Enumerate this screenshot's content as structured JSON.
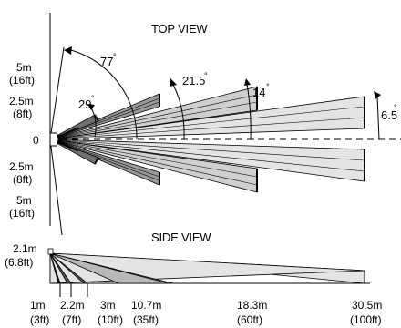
{
  "top_view": {
    "title": "TOP VIEW",
    "y_labels": [
      {
        "line1": "5m",
        "line2": "(16ft)"
      },
      {
        "line1": "2.5m",
        "line2": "(8ft)"
      },
      {
        "line1": "0",
        "line2": ""
      },
      {
        "line1": "2.5m",
        "line2": "(8ft)"
      },
      {
        "line1": "5m",
        "line2": "(16ft)"
      }
    ],
    "angles": [
      {
        "value": "77",
        "unit": "°"
      },
      {
        "value": "29",
        "unit": "°"
      },
      {
        "value": "21.5",
        "unit": "°"
      },
      {
        "value": "14",
        "unit": "°"
      },
      {
        "value": "6.5",
        "unit": "°"
      }
    ]
  },
  "side_view": {
    "title": "SIDE VIEW",
    "height_label": {
      "line1": "2.1m",
      "line2": "(6.8ft)"
    },
    "distances": [
      {
        "m": "1m",
        "ft": "(3ft)"
      },
      {
        "m": "2.2m",
        "ft": "(7ft)"
      },
      {
        "m": "3m",
        "ft": "(10ft)"
      },
      {
        "m": "10.7m",
        "ft": "(35ft)"
      },
      {
        "m": "18.3m",
        "ft": "(60ft)"
      },
      {
        "m": "30.5m",
        "ft": "(100ft)"
      }
    ]
  }
}
